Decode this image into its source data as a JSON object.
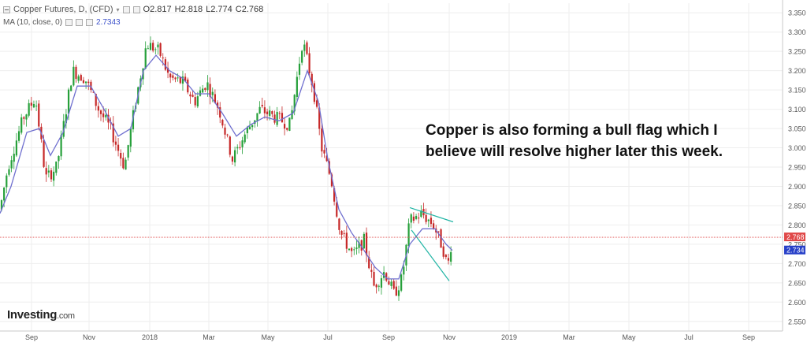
{
  "header": {
    "symbol_label": "Copper Futures, D, (CFD)",
    "ohlc": {
      "o": "O2.817",
      "h": "H2.818",
      "l": "L2.774",
      "c": "C2.768"
    },
    "ma_label": "MA (10, close, 0)",
    "ma_value": "2.7343",
    "collapse_icon": "minus-square-icon",
    "dropdown_icon": "chevron-down-icon",
    "tool_icons": [
      "eye-icon",
      "gear-icon",
      "close-icon"
    ]
  },
  "annotation": {
    "line1": "Copper is also forming a bull flag which I",
    "line2": "believe will resolve higher later this week."
  },
  "branding": {
    "name": "Investing",
    "suffix": ".com"
  },
  "colors": {
    "up_candle": "#26a03a",
    "down_candle": "#c62828",
    "ma_line": "#6f6fcf",
    "channel_lines": "#22b5a5",
    "price_line": "#e04848",
    "grid": "#eeeeee"
  },
  "chart_data": {
    "type": "candlestick",
    "title": "Copper Futures, D, (CFD)",
    "ylim": [
      2.525,
      3.375
    ],
    "y_ticks": [
      "3.350",
      "3.300",
      "3.250",
      "3.200",
      "3.150",
      "3.100",
      "3.050",
      "3.000",
      "2.950",
      "2.900",
      "2.850",
      "2.800",
      "2.750",
      "2.700",
      "2.650",
      "2.600",
      "2.550"
    ],
    "x_ticks": [
      "Sep",
      "Nov",
      "2018",
      "Mar",
      "May",
      "Jul",
      "Sep",
      "Nov",
      "2019",
      "Mar",
      "May",
      "Jul",
      "Sep"
    ],
    "last_price": {
      "value": 2.768,
      "label": "2.768"
    },
    "ma_last": {
      "value": 2.734,
      "label": "2.734"
    },
    "grid": true,
    "price_path": [
      [
        0,
        2.84
      ],
      [
        10,
        2.95
      ],
      [
        30,
        3.08
      ],
      [
        45,
        3.13
      ],
      [
        58,
        2.92
      ],
      [
        72,
        2.95
      ],
      [
        92,
        3.2
      ],
      [
        108,
        3.18
      ],
      [
        125,
        3.1
      ],
      [
        140,
        3.05
      ],
      [
        158,
        2.95
      ],
      [
        172,
        3.12
      ],
      [
        186,
        3.27
      ],
      [
        202,
        3.25
      ],
      [
        215,
        3.18
      ],
      [
        232,
        3.17
      ],
      [
        247,
        3.12
      ],
      [
        262,
        3.17
      ],
      [
        278,
        3.1
      ],
      [
        295,
        2.97
      ],
      [
        312,
        3.04
      ],
      [
        330,
        3.1
      ],
      [
        348,
        3.08
      ],
      [
        368,
        3.06
      ],
      [
        384,
        3.28
      ],
      [
        398,
        3.15
      ],
      [
        408,
        3.0
      ],
      [
        420,
        2.92
      ],
      [
        432,
        2.78
      ],
      [
        448,
        2.72
      ],
      [
        462,
        2.76
      ],
      [
        474,
        2.64
      ],
      [
        488,
        2.68
      ],
      [
        500,
        2.62
      ],
      [
        510,
        2.66
      ],
      [
        520,
        2.81
      ],
      [
        535,
        2.83
      ],
      [
        550,
        2.8
      ],
      [
        562,
        2.74
      ],
      [
        568,
        2.69
      ],
      [
        574,
        2.77
      ]
    ],
    "ma_path": [
      [
        0,
        2.83
      ],
      [
        14,
        2.9
      ],
      [
        34,
        3.04
      ],
      [
        50,
        3.05
      ],
      [
        64,
        2.98
      ],
      [
        80,
        3.04
      ],
      [
        98,
        3.16
      ],
      [
        115,
        3.16
      ],
      [
        132,
        3.1
      ],
      [
        150,
        3.03
      ],
      [
        166,
        3.05
      ],
      [
        182,
        3.2
      ],
      [
        198,
        3.24
      ],
      [
        215,
        3.2
      ],
      [
        232,
        3.18
      ],
      [
        248,
        3.14
      ],
      [
        265,
        3.14
      ],
      [
        282,
        3.09
      ],
      [
        300,
        3.03
      ],
      [
        318,
        3.06
      ],
      [
        336,
        3.08
      ],
      [
        354,
        3.07
      ],
      [
        372,
        3.09
      ],
      [
        390,
        3.2
      ],
      [
        404,
        3.12
      ],
      [
        416,
        2.97
      ],
      [
        430,
        2.84
      ],
      [
        446,
        2.78
      ],
      [
        460,
        2.74
      ],
      [
        476,
        2.69
      ],
      [
        492,
        2.66
      ],
      [
        506,
        2.66
      ],
      [
        520,
        2.75
      ],
      [
        536,
        2.79
      ],
      [
        552,
        2.79
      ],
      [
        566,
        2.75
      ],
      [
        574,
        2.734
      ]
    ],
    "flag_channel": {
      "upper": [
        [
          520,
          2.845
        ],
        [
          575,
          2.808
        ]
      ],
      "lower": [
        [
          522,
          2.787
        ],
        [
          570,
          2.655
        ]
      ]
    }
  }
}
